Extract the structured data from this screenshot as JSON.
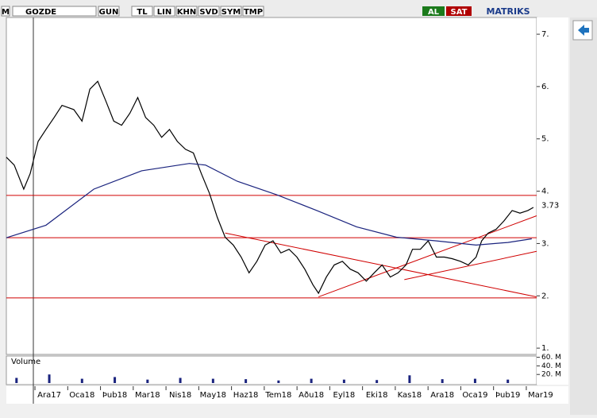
{
  "toolbar": {
    "m": "M",
    "symbol": "GOZDE",
    "buttons": [
      "GUN",
      "TL",
      "LIN",
      "KHN",
      "SVD",
      "SYM",
      "TMP"
    ],
    "buy": "AL",
    "sell": "SAT",
    "brand": "MATRIKS"
  },
  "chart_data": {
    "type": "line",
    "xlim": [
      -1.31,
      14.88
    ],
    "ylim": [
      0.88,
      7.32
    ],
    "xticks": [
      {
        "value": 0,
        "label": "Ara17"
      },
      {
        "value": 1,
        "label": "Oca18"
      },
      {
        "value": 2,
        "label": "Þub18"
      },
      {
        "value": 3,
        "label": "Mar18"
      },
      {
        "value": 4,
        "label": "Nis18"
      },
      {
        "value": 5,
        "label": "May18"
      },
      {
        "value": 6,
        "label": "Haz18"
      },
      {
        "value": 7,
        "label": "Tem18"
      },
      {
        "value": 8,
        "label": "Aðu18"
      },
      {
        "value": 9,
        "label": "Eyl18"
      },
      {
        "value": 10,
        "label": "Eki18"
      },
      {
        "value": 11,
        "label": "Kas18"
      },
      {
        "value": 12,
        "label": "Ara18"
      },
      {
        "value": 13,
        "label": "Oca19"
      },
      {
        "value": 14,
        "label": "Þub19"
      },
      {
        "value": 15,
        "label": "Mar19"
      }
    ],
    "yticks": [
      {
        "value": 7,
        "label": "7."
      },
      {
        "value": 6,
        "label": "6."
      },
      {
        "value": 5,
        "label": "5."
      },
      {
        "value": 4,
        "label": "4."
      },
      {
        "value": 3,
        "label": "3."
      },
      {
        "value": 2,
        "label": "2."
      },
      {
        "value": 1,
        "label": "1."
      }
    ],
    "last_value": 3.73,
    "series": [
      {
        "color": "#000000",
        "x": [
          -1.31,
          -1.07,
          -0.78,
          -0.58,
          -0.34,
          -0.1,
          0.15,
          0.39,
          0.75,
          1.0,
          1.24,
          1.48,
          1.73,
          1.97,
          2.21,
          2.46,
          2.7,
          2.94,
          3.19,
          3.43,
          3.67,
          3.91,
          4.16,
          4.4,
          4.64,
          4.89,
          5.13,
          5.37,
          5.62,
          5.86,
          6.1,
          6.34,
          6.59,
          6.83,
          7.07,
          7.32,
          7.56,
          7.8,
          8.05,
          8.22,
          8.46,
          8.7,
          8.95,
          9.19,
          9.43,
          9.68,
          9.92,
          10.16,
          10.41,
          10.65,
          10.89,
          11.09,
          11.33,
          11.57,
          11.82,
          12.06,
          12.3,
          12.55,
          12.79,
          13.03,
          13.2,
          13.4,
          13.64,
          13.88,
          14.13,
          14.37,
          14.61,
          14.78
        ],
        "values": [
          4.65,
          4.5,
          4.04,
          4.34,
          4.95,
          5.18,
          5.41,
          5.64,
          5.56,
          5.34,
          5.95,
          6.1,
          5.72,
          5.34,
          5.26,
          5.49,
          5.79,
          5.41,
          5.26,
          5.03,
          5.18,
          4.95,
          4.8,
          4.73,
          4.34,
          3.96,
          3.5,
          3.12,
          2.97,
          2.74,
          2.44,
          2.66,
          2.97,
          3.05,
          2.82,
          2.89,
          2.74,
          2.51,
          2.21,
          2.05,
          2.36,
          2.59,
          2.66,
          2.51,
          2.44,
          2.28,
          2.44,
          2.59,
          2.36,
          2.44,
          2.59,
          2.89,
          2.89,
          3.05,
          2.74,
          2.74,
          2.71,
          2.66,
          2.59,
          2.74,
          3.05,
          3.2,
          3.27,
          3.43,
          3.63,
          3.58,
          3.63,
          3.69
        ]
      },
      {
        "color": "#1a237e",
        "x": [
          -1.31,
          -0.1,
          1.36,
          2.82,
          4.28,
          4.77,
          5.74,
          6.95,
          8.17,
          9.38,
          10.6,
          11.82,
          13.03,
          14.0,
          14.73
        ],
        "values": [
          3.11,
          3.35,
          4.04,
          4.39,
          4.53,
          4.5,
          4.19,
          3.93,
          3.63,
          3.32,
          3.12,
          3.05,
          2.97,
          3.02,
          3.09
        ]
      }
    ],
    "level_color": "#d00000",
    "levels": [
      3.92,
      3.11,
      1.96
    ],
    "trendlines": [
      {
        "x": [
          5.37,
          14.88
        ],
        "values": [
          3.2,
          1.98
        ]
      },
      {
        "x": [
          8.22,
          14.88
        ],
        "values": [
          1.98,
          3.53
        ]
      },
      {
        "x": [
          10.84,
          14.88
        ],
        "values": [
          2.31,
          2.85
        ]
      }
    ],
    "volume": {
      "label": "Volume",
      "color": "#1a237e",
      "ylim": [
        0,
        63
      ],
      "yticks": [
        {
          "value": 60,
          "label": "60. M"
        },
        {
          "value": 40,
          "label": "40. M"
        },
        {
          "value": 20,
          "label": "20. M"
        }
      ],
      "x": [
        -1,
        0,
        1,
        2,
        3,
        4,
        5,
        6,
        7,
        8,
        9,
        10,
        11,
        12,
        13,
        14
      ],
      "values": [
        12,
        20,
        10,
        14,
        8,
        12,
        10,
        9,
        6,
        10,
        8,
        7,
        18,
        9,
        10,
        8
      ]
    }
  }
}
